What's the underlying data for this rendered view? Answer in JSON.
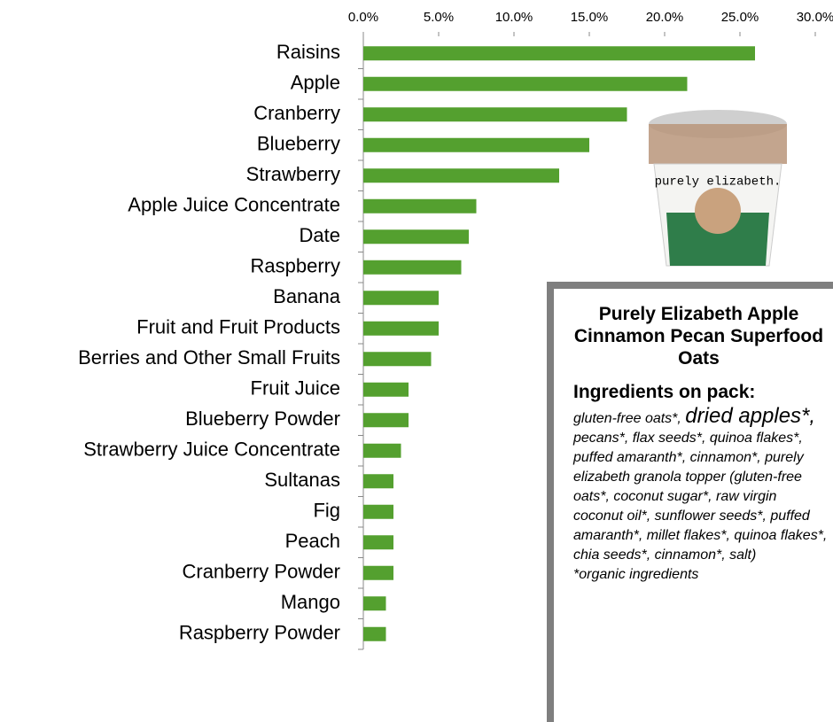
{
  "chart_data": {
    "type": "bar",
    "orientation": "horizontal",
    "categories": [
      "Raisins",
      "Apple",
      "Cranberry",
      "Blueberry",
      "Strawberry",
      "Apple Juice Concentrate",
      "Date",
      "Raspberry",
      "Banana",
      "Fruit and Fruit Products",
      "Berries and Other Small Fruits",
      "Fruit Juice",
      "Blueberry Powder",
      "Strawberry Juice Concentrate",
      "Sultanas",
      "Fig",
      "Peach",
      "Cranberry Powder",
      "Mango",
      "Raspberry Powder"
    ],
    "values": [
      26,
      21.5,
      17.5,
      15,
      13,
      7.5,
      7,
      6.5,
      5,
      5,
      4.5,
      3,
      3,
      2.5,
      2,
      2,
      2,
      2,
      1.5,
      1.5
    ],
    "color": "#54a02f",
    "xlim": [
      0,
      30
    ],
    "xticks": [
      {
        "value": 0,
        "label": "0.0%"
      },
      {
        "value": 5,
        "label": "5.0%"
      },
      {
        "value": 10,
        "label": "10.0%"
      },
      {
        "value": 15,
        "label": "15.0%"
      },
      {
        "value": 20,
        "label": "20.0%"
      },
      {
        "value": 25,
        "label": "25.0%"
      },
      {
        "value": 30,
        "label": "30.0%"
      }
    ],
    "grid": false
  },
  "product": {
    "label": "purely elizabeth."
  },
  "info_box": {
    "title": "Purely Elizabeth Apple Cinnamon Pecan Superfood Oats",
    "heading": "Ingredients on pack:",
    "ingredients_start": "gluten-free oats*, ",
    "ingredients_emphasis": "dried apples*,",
    "ingredients_rest": " pecans*, flax seeds*, quinoa flakes*, puffed amaranth*, cinnamon*, purely elizabeth granola topper (gluten-free oats*, coconut sugar*, raw virgin coconut oil*, sunflower seeds*, puffed amaranth*, millet flakes*, quinoa flakes*, chia seeds*, cinnamon*, salt)",
    "footnote": "*organic ingredients"
  }
}
